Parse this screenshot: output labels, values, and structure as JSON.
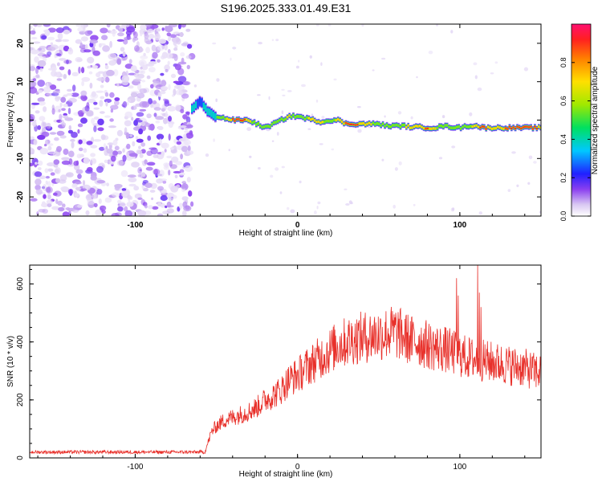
{
  "title": "S196.2025.333.01.49.E31",
  "chart_data": [
    {
      "type": "heatmap",
      "xlabel": "Height of straight line (km)",
      "ylabel": "Frequency (Hz)",
      "xlim": [
        -165,
        150
      ],
      "ylim": [
        -25,
        25
      ],
      "xticks": [
        -100,
        0,
        100
      ],
      "yticks": [
        -20,
        -10,
        0,
        10,
        20
      ],
      "colorbar": {
        "label": "Normalized spectral amplitude",
        "range": [
          0,
          1
        ],
        "ticks": [
          "0.0",
          "0.2",
          "0.4",
          "0.6",
          "0.8"
        ]
      },
      "noise_region": {
        "x_range": [
          -165,
          -65
        ],
        "y_range": [
          -25,
          25
        ],
        "level": "low"
      },
      "ridge": {
        "x": [
          -65,
          -60,
          -55,
          -50,
          -45,
          -40,
          -35,
          -30,
          -25,
          -20,
          -15,
          -10,
          -5,
          0,
          5,
          10,
          15,
          20,
          25,
          30,
          35,
          40,
          45,
          50,
          55,
          60,
          65,
          70,
          75,
          80,
          85,
          90,
          95,
          100,
          105,
          110,
          115,
          120,
          125,
          130,
          135,
          140,
          145,
          150
        ],
        "y": [
          3,
          5,
          2,
          1,
          0.5,
          0,
          0,
          0,
          -1,
          -2,
          -1,
          0,
          1,
          1,
          0.5,
          0,
          -0.5,
          0,
          0,
          -1,
          -1,
          -1,
          -1,
          -1,
          -1.5,
          -1.5,
          -1.5,
          -1.8,
          -1.8,
          -2,
          -2,
          -1.5,
          -1.8,
          -2,
          -1.5,
          -1.5,
          -2,
          -2,
          -2,
          -2,
          -2,
          -2,
          -2,
          -2
        ],
        "amplitude": [
          0.4,
          0.3,
          0.4,
          0.5,
          0.6,
          0.9,
          0.9,
          0.8,
          0.5,
          0.6,
          0.5,
          0.6,
          0.7,
          0.5,
          0.6,
          0.8,
          0.7,
          0.6,
          0.7,
          0.9,
          0.9,
          0.8,
          0.7,
          0.6,
          0.5,
          0.6,
          0.6,
          0.8,
          0.7,
          0.9,
          0.7,
          0.5,
          0.6,
          0.5,
          0.6,
          0.8,
          0.9,
          0.7,
          0.8,
          0.9,
          0.9,
          0.9,
          0.9,
          0.8
        ]
      }
    },
    {
      "type": "line",
      "xlabel": "Height of straight line (km)",
      "ylabel": "SNR (10 * v/v)",
      "xlim": [
        -165,
        150
      ],
      "ylim": [
        0,
        665
      ],
      "xticks": [
        -100,
        0,
        100
      ],
      "yticks": [
        0,
        200,
        400,
        600
      ],
      "series": [
        {
          "color": "#e8302a",
          "x": [
            -165,
            -150,
            -130,
            -110,
            -90,
            -70,
            -57,
            -53,
            -50,
            -45,
            -40,
            -35,
            -30,
            -25,
            -20,
            -15,
            -10,
            -5,
            0,
            5,
            10,
            15,
            20,
            25,
            30,
            35,
            40,
            45,
            50,
            55,
            60,
            65,
            70,
            75,
            80,
            85,
            90,
            95,
            100,
            105,
            110,
            115,
            120,
            125,
            130,
            135,
            140,
            145,
            150
          ],
          "y": [
            20,
            20,
            20,
            20,
            20,
            20,
            20,
            90,
            110,
            130,
            140,
            150,
            160,
            175,
            200,
            215,
            235,
            270,
            285,
            310,
            330,
            350,
            370,
            390,
            400,
            410,
            415,
            420,
            425,
            430,
            435,
            420,
            405,
            400,
            390,
            380,
            375,
            365,
            355,
            345,
            340,
            335,
            330,
            325,
            320,
            315,
            310,
            300,
            295
          ]
        }
      ],
      "spikes": [
        {
          "x": 98,
          "y": 620
        },
        {
          "x": 111,
          "y": 665
        },
        {
          "x": 112,
          "y": 570
        },
        {
          "x": 113,
          "y": 520
        },
        {
          "x": 99,
          "y": 560
        }
      ]
    }
  ]
}
